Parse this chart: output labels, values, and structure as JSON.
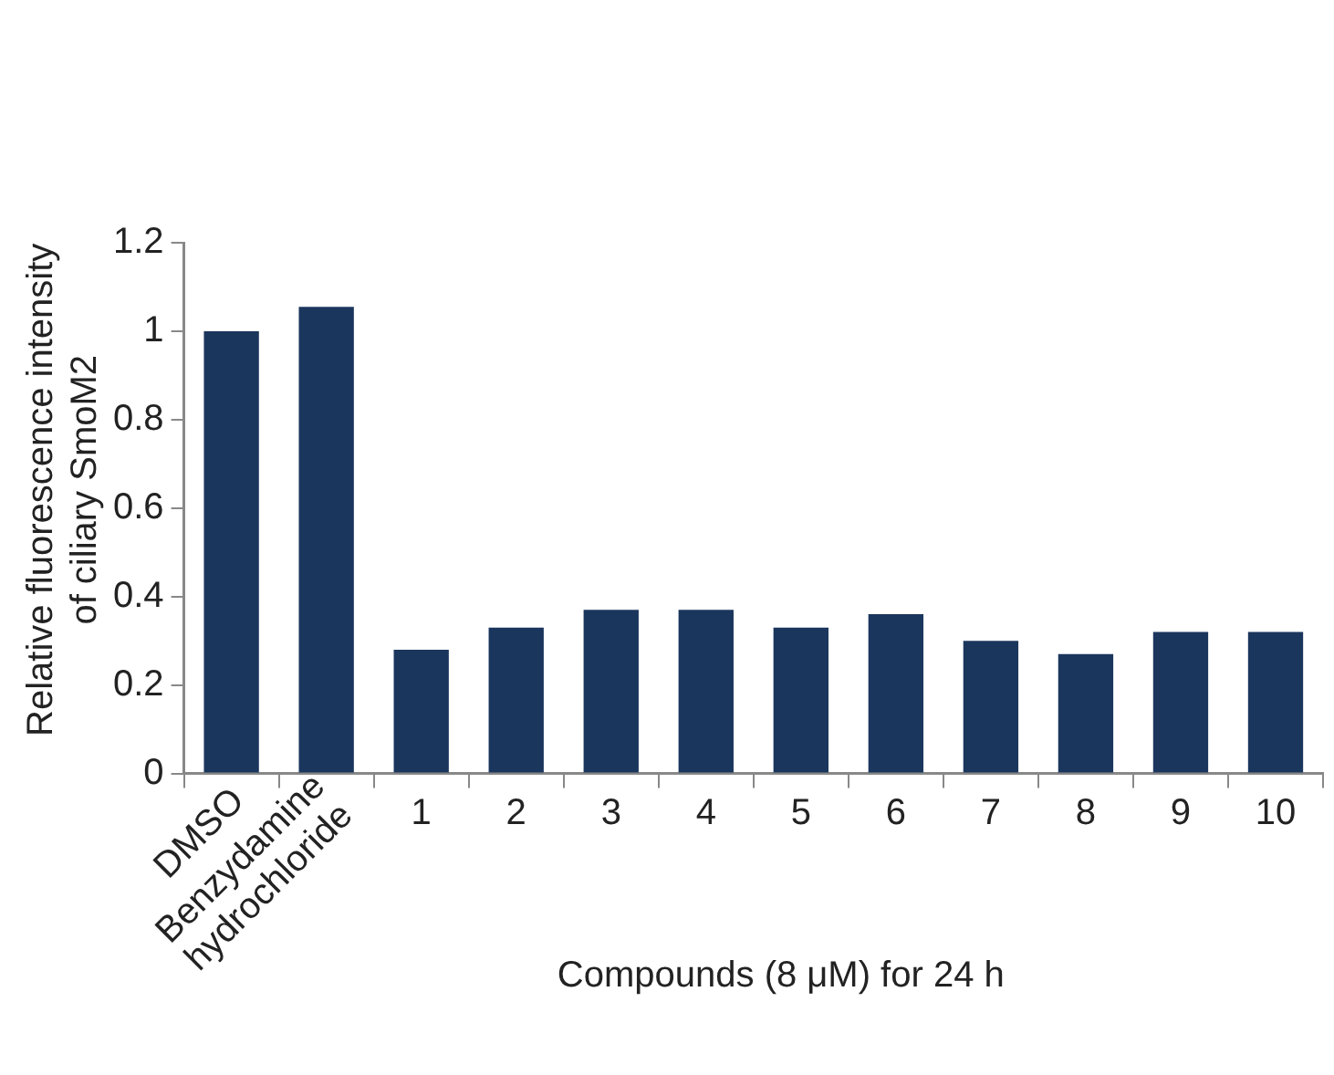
{
  "chart_data": {
    "type": "bar",
    "xlabel": "Compounds (8 μM) for 24 h",
    "ylabel": "Relative fluorescence intensity of ciliary SmoM2",
    "categories": [
      "DMSO",
      "Benzydamine hydrochloride",
      "1",
      "2",
      "3",
      "4",
      "5",
      "6",
      "7",
      "8",
      "9",
      "10"
    ],
    "values": [
      1.0,
      1.055,
      0.28,
      0.33,
      0.37,
      0.37,
      0.33,
      0.36,
      0.3,
      0.27,
      0.32,
      0.32
    ],
    "color": "#1b365d",
    "ylim": [
      0,
      1.2
    ],
    "yticks": [
      0,
      0.2,
      0.4,
      0.6,
      0.8,
      1,
      1.2
    ],
    "grid": false,
    "legend": false
  }
}
